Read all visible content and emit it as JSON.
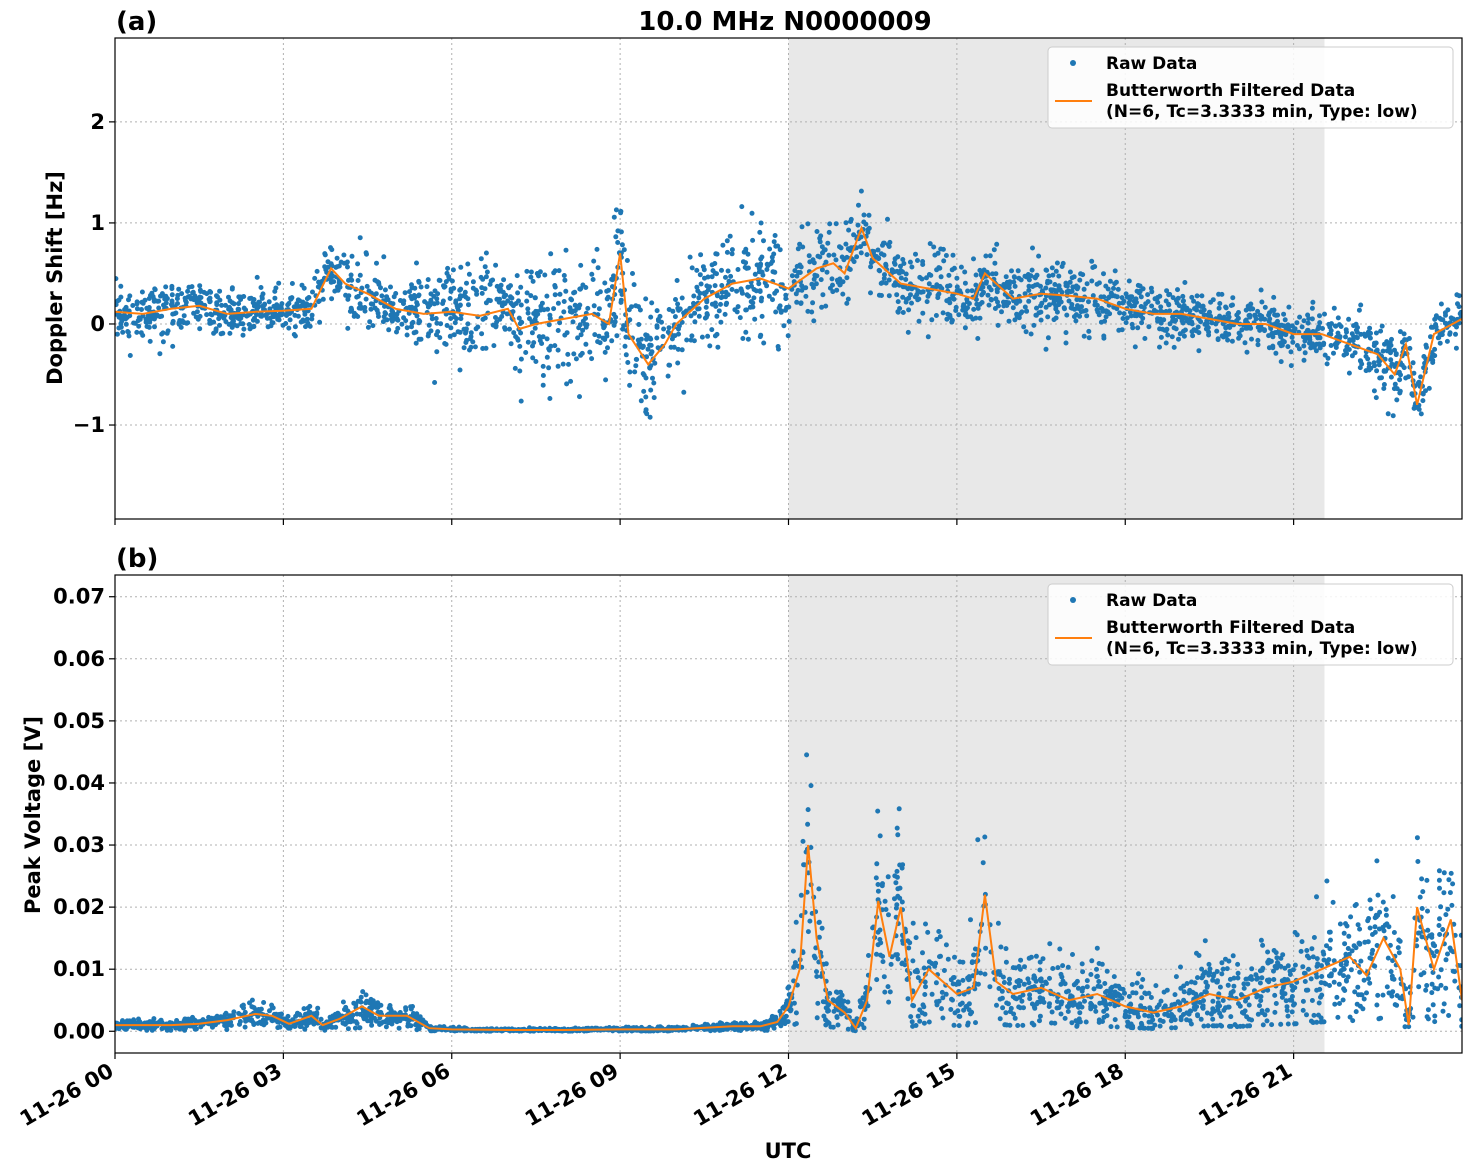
{
  "figure": {
    "title": "10.0 MHz N0000009",
    "xlabel": "UTC",
    "x_ticks": [
      "11-26 00",
      "11-26 03",
      "11-26 06",
      "11-26 09",
      "11-26 12",
      "11-26 15",
      "11-26 18",
      "11-26 21"
    ],
    "shaded_interval_hours": [
      12.0,
      21.55
    ],
    "colors": {
      "raw": "#1f77b4",
      "filtered": "#ff7f0e",
      "shade": "#e8e8e8",
      "grid": "#b0b0b0"
    }
  },
  "legend": {
    "raw": "Raw Data",
    "filtered_line1": "Butterworth Filtered Data",
    "filtered_line2": "(N=6, Tc=3.3333 min, Type: low)"
  },
  "chart_data": [
    {
      "panel": "(a)",
      "type": "scatter",
      "ylabel": "Doppler Shift [Hz]",
      "xlim_hours": [
        0,
        24
      ],
      "ylim": [
        -1.93,
        2.83
      ],
      "y_ticks": [
        -1,
        0,
        1,
        2
      ],
      "y_tick_labels": [
        "−1",
        "0",
        "1",
        "2"
      ],
      "legend_position": "top-right",
      "grid": true,
      "series": [
        {
          "name": "Butterworth Filtered Data",
          "style": "line",
          "x_hours": [
            0,
            0.5,
            1,
            1.5,
            2,
            2.5,
            3,
            3.5,
            3.85,
            4.1,
            4.5,
            5,
            5.5,
            6,
            6.5,
            7,
            7.2,
            7.5,
            8,
            8.5,
            8.8,
            9,
            9.15,
            9.5,
            9.8,
            10,
            10.5,
            11,
            11.5,
            12,
            12.5,
            12.8,
            13,
            13.3,
            13.5,
            14,
            14.5,
            15,
            15.3,
            15.5,
            16,
            16.5,
            17,
            17.5,
            18,
            18.5,
            19,
            19.5,
            20,
            20.5,
            21,
            21.5,
            22,
            22.5,
            22.8,
            23,
            23.2,
            23.5,
            24
          ],
          "y": [
            0.12,
            0.1,
            0.15,
            0.18,
            0.1,
            0.12,
            0.13,
            0.15,
            0.55,
            0.4,
            0.3,
            0.15,
            0.1,
            0.12,
            0.08,
            0.15,
            -0.05,
            0.0,
            0.05,
            0.1,
            0.0,
            0.7,
            -0.1,
            -0.4,
            -0.2,
            0.0,
            0.25,
            0.4,
            0.45,
            0.35,
            0.55,
            0.6,
            0.5,
            0.95,
            0.65,
            0.4,
            0.35,
            0.3,
            0.25,
            0.5,
            0.25,
            0.3,
            0.28,
            0.25,
            0.15,
            0.1,
            0.1,
            0.05,
            0.0,
            0.0,
            -0.1,
            -0.1,
            -0.2,
            -0.3,
            -0.5,
            -0.2,
            -0.8,
            -0.1,
            0.05
          ]
        },
        {
          "name": "Raw Data",
          "style": "markers",
          "spread_hz": [
            0.22,
            0.22,
            0.24,
            0.24,
            0.2,
            0.2,
            0.22,
            0.25,
            0.35,
            0.3,
            0.3,
            0.3,
            0.35,
            0.4,
            0.45,
            0.5,
            0.55,
            0.55,
            0.6,
            0.6,
            0.6,
            0.5,
            0.55,
            0.5,
            0.45,
            0.45,
            0.45,
            0.5,
            0.55,
            0.4,
            0.35,
            0.35,
            0.35,
            0.35,
            0.3,
            0.3,
            0.3,
            0.3,
            0.3,
            0.3,
            0.3,
            0.3,
            0.3,
            0.3,
            0.28,
            0.25,
            0.25,
            0.22,
            0.22,
            0.22,
            0.22,
            0.22,
            0.25,
            0.3,
            0.35,
            0.3,
            0.35,
            0.25,
            0.22
          ]
        }
      ]
    },
    {
      "panel": "(b)",
      "type": "scatter",
      "ylabel": "Peak Voltage [V]",
      "xlim_hours": [
        0,
        24
      ],
      "ylim": [
        -0.0035,
        0.0735
      ],
      "y_ticks": [
        0,
        0.01,
        0.02,
        0.03,
        0.04,
        0.05,
        0.06,
        0.07
      ],
      "y_tick_labels": [
        "0.00",
        "0.01",
        "0.02",
        "0.03",
        "0.04",
        "0.05",
        "0.06",
        "0.07"
      ],
      "legend_position": "top-right",
      "grid": true,
      "series": [
        {
          "name": "Butterworth Filtered Data",
          "style": "line",
          "x_hours": [
            0,
            0.5,
            1,
            1.5,
            2,
            2.5,
            2.8,
            3.1,
            3.5,
            3.7,
            4,
            4.4,
            4.7,
            5.2,
            5.6,
            6,
            7,
            8,
            9,
            10,
            11,
            11.5,
            11.8,
            12.0,
            12.2,
            12.35,
            12.5,
            12.7,
            13,
            13.2,
            13.4,
            13.6,
            13.8,
            14,
            14.2,
            14.5,
            15,
            15.3,
            15.5,
            15.7,
            16,
            16.5,
            17,
            17.5,
            18,
            18.5,
            19,
            19.5,
            20,
            20.5,
            21,
            21.5,
            22,
            22.3,
            22.6,
            22.9,
            23.05,
            23.2,
            23.5,
            23.8,
            24
          ],
          "y": [
            0.001,
            0.001,
            0.001,
            0.0012,
            0.0018,
            0.0028,
            0.0025,
            0.0012,
            0.0025,
            0.001,
            0.002,
            0.004,
            0.0025,
            0.0025,
            0.0005,
            0.0003,
            0.0002,
            0.0002,
            0.0003,
            0.0003,
            0.0008,
            0.0008,
            0.0015,
            0.004,
            0.01,
            0.03,
            0.015,
            0.005,
            0.003,
            0.0005,
            0.005,
            0.021,
            0.012,
            0.02,
            0.005,
            0.01,
            0.006,
            0.007,
            0.022,
            0.008,
            0.006,
            0.007,
            0.005,
            0.006,
            0.004,
            0.003,
            0.004,
            0.006,
            0.005,
            0.007,
            0.008,
            0.01,
            0.012,
            0.009,
            0.015,
            0.01,
            0.001,
            0.02,
            0.01,
            0.018,
            0.005
          ],
          "spread_v": [
            0.0008,
            0.0008,
            0.0008,
            0.0009,
            0.0012,
            0.002,
            0.0018,
            0.001,
            0.002,
            0.0008,
            0.0015,
            0.003,
            0.002,
            0.002,
            0.0004,
            0.0003,
            0.0002,
            0.0002,
            0.0003,
            0.0003,
            0.0006,
            0.0006,
            0.001,
            0.004,
            0.008,
            0.016,
            0.01,
            0.005,
            0.003,
            0.0006,
            0.006,
            0.012,
            0.01,
            0.012,
            0.006,
            0.008,
            0.006,
            0.007,
            0.012,
            0.007,
            0.006,
            0.006,
            0.005,
            0.006,
            0.004,
            0.004,
            0.005,
            0.006,
            0.006,
            0.007,
            0.008,
            0.009,
            0.01,
            0.009,
            0.011,
            0.009,
            0.002,
            0.012,
            0.01,
            0.012,
            0.008
          ]
        }
      ]
    }
  ]
}
